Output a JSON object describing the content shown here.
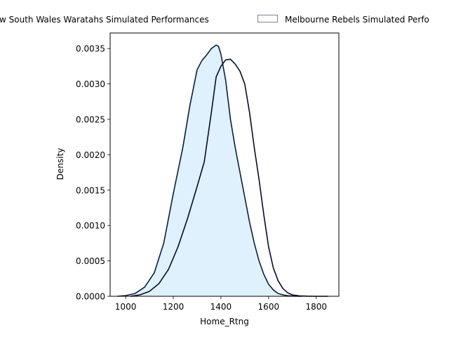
{
  "chart_data": {
    "type": "area",
    "title": "",
    "xlabel": "Home_Rtng",
    "ylabel": "Density",
    "xlim": [
      935,
      1895
    ],
    "ylim": [
      0,
      0.00372
    ],
    "x_ticks": [
      1000,
      1200,
      1400,
      1600,
      1800
    ],
    "x_tick_labels": [
      "1000",
      "1200",
      "1400",
      "1600",
      "1800"
    ],
    "y_ticks": [
      0,
      0.0005,
      0.001,
      0.0015,
      0.002,
      0.0025,
      0.003,
      0.0035
    ],
    "y_tick_labels": [
      "0.0000",
      "0.0005",
      "0.0010",
      "0.0015",
      "0.0020",
      "0.0025",
      "0.0030",
      "0.0035"
    ],
    "legend": {
      "placement": "top-center, outside plot",
      "entries": [
        {
          "label": "New South Wales Waratahs Simulated Performances",
          "visible_text": "w South Wales Waratahs Simulated Performances",
          "fill": "#ffffff",
          "stroke": "#ffffff"
        },
        {
          "label": "Melbourne Rebels Simulated Performances",
          "visible_text": "Melbourne Rebels Simulated Perfo",
          "fill": "#ffffff",
          "stroke": "#7f7fa0"
        }
      ]
    },
    "series": [
      {
        "name": "New South Wales Waratahs Simulated Performances",
        "fill": "#dff1fc",
        "line_color": "#0a1f3f",
        "x": [
          965,
          1000,
          1040,
          1080,
          1120,
          1160,
          1200,
          1240,
          1270,
          1300,
          1320,
          1340,
          1360,
          1380,
          1390,
          1400,
          1420,
          1440,
          1460,
          1480,
          1500,
          1520,
          1540,
          1560,
          1580,
          1600,
          1620,
          1640,
          1660,
          1680,
          1710,
          1740
        ],
        "y": [
          0,
          1e-05,
          4e-05,
          0.00013,
          0.00033,
          0.00075,
          0.00145,
          0.0021,
          0.0027,
          0.0032,
          0.00333,
          0.00341,
          0.0035,
          0.00355,
          0.00353,
          0.00342,
          0.00305,
          0.0025,
          0.0021,
          0.00175,
          0.0014,
          0.00105,
          0.00075,
          0.0005,
          0.00031,
          0.00017,
          9e-05,
          4e-05,
          2e-05,
          8e-06,
          2e-06,
          0
        ]
      },
      {
        "name": "Melbourne Rebels Simulated Performances",
        "fill": "none",
        "line_color": "#0a0a30",
        "x": [
          1020,
          1060,
          1100,
          1140,
          1180,
          1220,
          1260,
          1300,
          1330,
          1360,
          1380,
          1400,
          1420,
          1440,
          1460,
          1480,
          1500,
          1520,
          1540,
          1560,
          1580,
          1600,
          1620,
          1640,
          1660,
          1680,
          1700,
          1730,
          1760,
          1800,
          1850
        ],
        "y": [
          0,
          2e-05,
          7e-05,
          0.00018,
          0.00038,
          0.0007,
          0.0011,
          0.00155,
          0.0019,
          0.0026,
          0.0031,
          0.00325,
          0.00334,
          0.00335,
          0.00328,
          0.00318,
          0.003,
          0.0026,
          0.0021,
          0.00165,
          0.00115,
          0.0007,
          0.0004,
          0.00022,
          0.00011,
          5e-05,
          2e-05,
          6e-06,
          2e-06,
          0,
          0
        ]
      }
    ]
  }
}
